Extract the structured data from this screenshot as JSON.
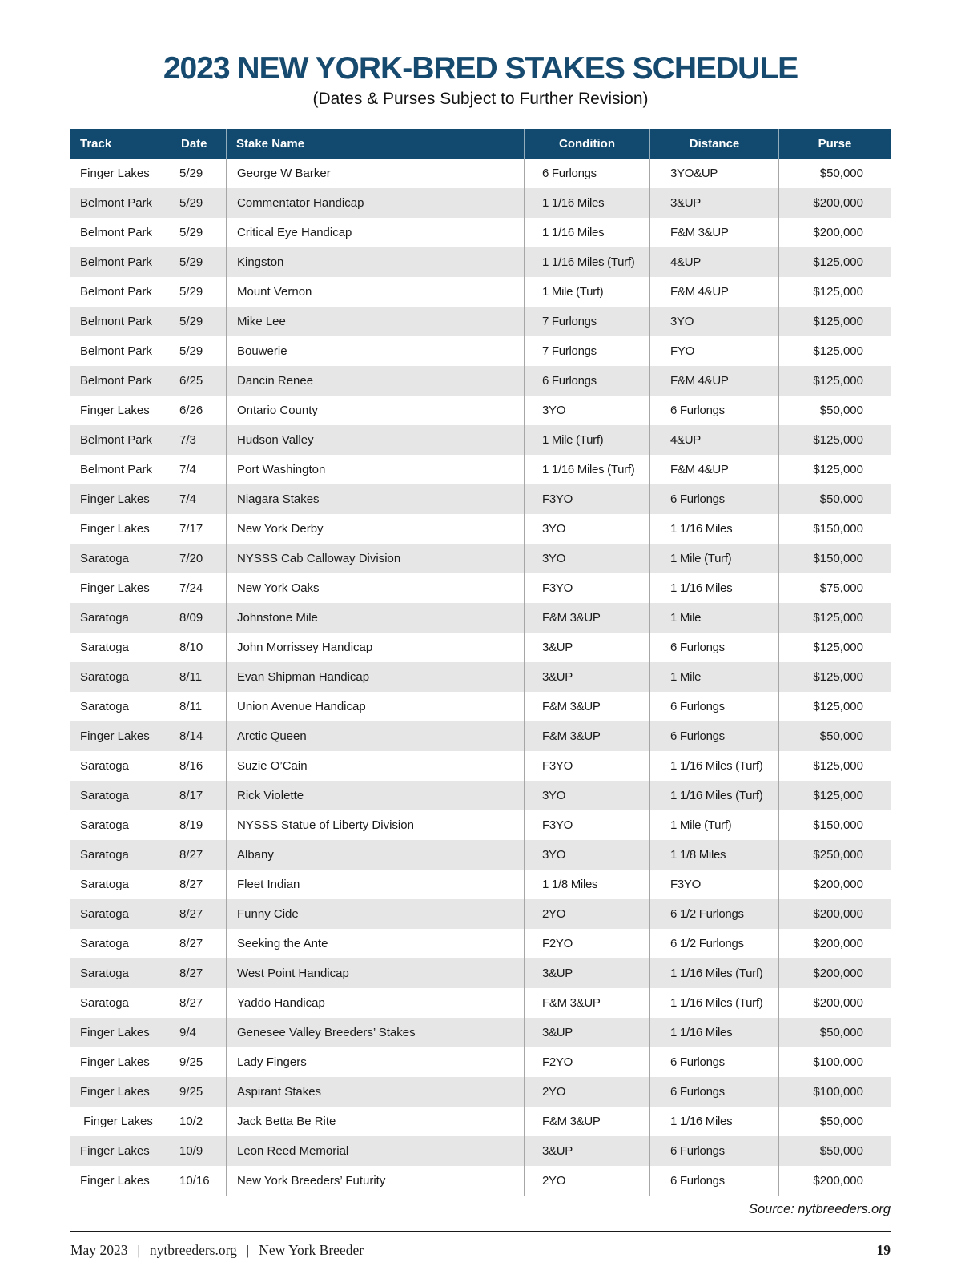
{
  "page": {
    "title": "2023 NEW YORK-BRED STAKES SCHEDULE",
    "subtitle": "(Dates & Purses Subject to Further Revision)",
    "source_note": "Source: nytbreeders.org"
  },
  "colors": {
    "header_navy": "#114a6e",
    "title_navy": "#164a6e",
    "row_stripe_gray": "#e6e6e6",
    "column_divider_gray": "#a6a6a6"
  },
  "table": {
    "columns": [
      "Track",
      "Date",
      "Stake Name",
      "Condition",
      "Distance",
      "Purse"
    ],
    "rows": [
      [
        "Finger Lakes",
        "5/29",
        "George W Barker",
        "6 Furlongs",
        "3YO&UP",
        "$50,000"
      ],
      [
        "Belmont Park",
        "5/29",
        "Commentator Handicap",
        "1 1/16 Miles",
        "3&UP",
        "$200,000"
      ],
      [
        "Belmont Park",
        "5/29",
        "Critical Eye Handicap",
        "1 1/16 Miles",
        "F&M 3&UP",
        "$200,000"
      ],
      [
        "Belmont Park",
        "5/29",
        "Kingston",
        "1 1/16 Miles (Turf)",
        "4&UP",
        "$125,000"
      ],
      [
        "Belmont Park",
        "5/29",
        "Mount Vernon",
        "1 Mile (Turf)",
        "F&M 4&UP",
        "$125,000"
      ],
      [
        "Belmont Park",
        "5/29",
        "Mike Lee",
        "7 Furlongs",
        "3YO",
        "$125,000"
      ],
      [
        "Belmont Park",
        "5/29",
        "Bouwerie",
        "7 Furlongs",
        "FYO",
        "$125,000"
      ],
      [
        "Belmont Park",
        "6/25",
        "Dancin Renee",
        "6 Furlongs",
        "F&M 4&UP",
        "$125,000"
      ],
      [
        "Finger Lakes",
        "6/26",
        "Ontario County",
        "3YO",
        "6 Furlongs",
        "$50,000"
      ],
      [
        "Belmont Park",
        "7/3",
        "Hudson Valley",
        "1 Mile (Turf)",
        "4&UP",
        "$125,000"
      ],
      [
        "Belmont Park",
        "7/4",
        "Port Washington",
        "1 1/16 Miles (Turf)",
        "F&M 4&UP",
        "$125,000"
      ],
      [
        "Finger Lakes",
        "7/4",
        "Niagara Stakes",
        "F3YO",
        "6 Furlongs",
        "$50,000"
      ],
      [
        "Finger Lakes",
        "7/17",
        "New York Derby",
        "3YO",
        "1 1/16 Miles",
        "$150,000"
      ],
      [
        "Saratoga",
        "7/20",
        "NYSSS Cab Calloway Division",
        "3YO",
        "1 Mile (Turf)",
        "$150,000"
      ],
      [
        "Finger Lakes",
        "7/24",
        "New York Oaks",
        "F3YO",
        "1 1/16 Miles",
        "$75,000"
      ],
      [
        "Saratoga",
        "8/09",
        "Johnstone Mile",
        "F&M 3&UP",
        "1 Mile",
        "$125,000"
      ],
      [
        "Saratoga",
        "8/10",
        "John Morrissey Handicap",
        "3&UP",
        "6 Furlongs",
        "$125,000"
      ],
      [
        "Saratoga",
        "8/11",
        "Evan Shipman Handicap",
        "3&UP",
        "1 Mile",
        "$125,000"
      ],
      [
        "Saratoga",
        "8/11",
        "Union Avenue Handicap",
        "F&M 3&UP",
        "6 Furlongs",
        "$125,000"
      ],
      [
        "Finger Lakes",
        "8/14",
        "Arctic Queen",
        "F&M 3&UP",
        "6 Furlongs",
        "$50,000"
      ],
      [
        "Saratoga",
        "8/16",
        "Suzie O’Cain",
        "F3YO",
        "1 1/16 Miles (Turf)",
        "$125,000"
      ],
      [
        "Saratoga",
        "8/17",
        "Rick Violette",
        "3YO",
        "1 1/16 Miles (Turf)",
        "$125,000"
      ],
      [
        "Saratoga",
        "8/19",
        "NYSSS Statue of Liberty Division",
        "F3YO",
        "1 Mile (Turf)",
        "$150,000"
      ],
      [
        "Saratoga",
        "8/27",
        "Albany",
        "3YO",
        "1 1/8 Miles",
        "$250,000"
      ],
      [
        "Saratoga",
        "8/27",
        "Fleet Indian",
        "1 1/8 Miles",
        "F3YO",
        "$200,000"
      ],
      [
        "Saratoga",
        "8/27",
        "Funny Cide",
        "2YO",
        "6 1/2 Furlongs",
        "$200,000"
      ],
      [
        "Saratoga",
        "8/27",
        "Seeking the Ante",
        "F2YO",
        "6 1/2 Furlongs",
        "$200,000"
      ],
      [
        "Saratoga",
        "8/27",
        "West Point Handicap",
        "3&UP",
        "1 1/16 Miles (Turf)",
        "$200,000"
      ],
      [
        "Saratoga",
        "8/27",
        "Yaddo Handicap",
        "F&M 3&UP",
        "1 1/16 Miles (Turf)",
        "$200,000"
      ],
      [
        "Finger Lakes",
        "9/4",
        "Genesee Valley Breeders’ Stakes",
        "3&UP",
        "1 1/16 Miles",
        "$50,000"
      ],
      [
        "Finger Lakes",
        "9/25",
        "Lady Fingers",
        "F2YO",
        "6 Furlongs",
        "$100,000"
      ],
      [
        "Finger Lakes",
        "9/25",
        "Aspirant Stakes",
        "2YO",
        "6 Furlongs",
        "$100,000"
      ],
      [
        " Finger Lakes",
        "10/2",
        "Jack Betta Be Rite",
        "F&M 3&UP",
        "1 1/16 Miles",
        "$50,000"
      ],
      [
        "Finger Lakes",
        "10/9",
        "Leon Reed Memorial",
        "3&UP",
        "6 Furlongs",
        "$50,000"
      ],
      [
        "Finger Lakes",
        "10/16",
        "New York Breeders’ Futurity",
        "2YO",
        "6 Furlongs",
        "$200,000"
      ]
    ]
  },
  "footer": {
    "issue_date": "May 2023",
    "separator": "|",
    "website": "nytbreeders.org",
    "publication": "New York Breeder",
    "page_number": "19"
  }
}
